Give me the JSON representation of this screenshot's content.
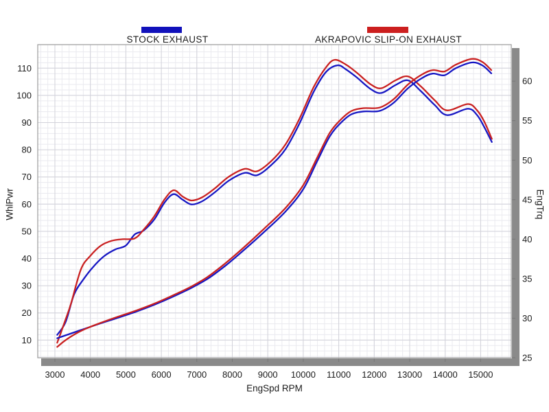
{
  "legend": [
    {
      "label": "STOCK EXHAUST",
      "color": "#1111BB"
    },
    {
      "label": "AKRAPOVIC SLIP-ON EXHAUST",
      "color": "#CC1F1F"
    }
  ],
  "axes": {
    "left_title": "WhlPwr",
    "right_title": "EngTrq",
    "x_title": "EngSpd  RPM"
  },
  "style_colors": {
    "grid_minor": "#eaeaef",
    "grid_major": "#d2d2da",
    "frame": "#9a9a9a",
    "shadow_bar": "#8a8a8a",
    "tick_text": "#1a1a1a",
    "curve_blue": "#1616C3",
    "curve_red": "#C92020"
  },
  "chart_data": {
    "type": "line",
    "title": "",
    "xlabel": "EngSpd  RPM",
    "x_ticks": [
      3000,
      4000,
      5000,
      6000,
      7000,
      8000,
      9000,
      10000,
      11000,
      12000,
      13000,
      14000,
      15000
    ],
    "x_range": [
      2516,
      15862
    ],
    "y_left": {
      "label": "WhlPwr",
      "ticks": [
        10,
        20,
        30,
        40,
        50,
        60,
        70,
        80,
        90,
        100,
        110
      ],
      "range": [
        3.5,
        118.7
      ]
    },
    "y_right": {
      "label": "EngTrq",
      "ticks": [
        25,
        30,
        35,
        40,
        45,
        50,
        55,
        60
      ],
      "range": [
        25,
        64.6
      ]
    },
    "grid": true,
    "legend_position": "top",
    "series": [
      {
        "name": "STOCK EXHAUST - WhlPwr",
        "color": "#1616C3",
        "axis": "left",
        "points": [
          [
            3065,
            10.7
          ],
          [
            3400,
            12.2
          ],
          [
            3800,
            14.0
          ],
          [
            4300,
            16.2
          ],
          [
            4800,
            18.3
          ],
          [
            5300,
            20.5
          ],
          [
            5800,
            23.0
          ],
          [
            6300,
            25.8
          ],
          [
            6800,
            28.9
          ],
          [
            7300,
            32.5
          ],
          [
            7800,
            37.3
          ],
          [
            8300,
            42.8
          ],
          [
            8900,
            49.8
          ],
          [
            9500,
            57.3
          ],
          [
            10000,
            65.5
          ],
          [
            10400,
            76.0
          ],
          [
            10750,
            85.0
          ],
          [
            11050,
            89.8
          ],
          [
            11350,
            93.0
          ],
          [
            11700,
            94.1
          ],
          [
            12150,
            94.3
          ],
          [
            12550,
            97.3
          ],
          [
            12950,
            102.6
          ],
          [
            13350,
            106.4
          ],
          [
            13650,
            108.0
          ],
          [
            13980,
            107.4
          ],
          [
            14300,
            110.0
          ],
          [
            14750,
            112.1
          ],
          [
            15050,
            111.0
          ],
          [
            15300,
            108.1
          ]
        ]
      },
      {
        "name": "AKRAPOVIC SLIP-ON EXHAUST - WhlPwr",
        "color": "#C92020",
        "axis": "left",
        "points": [
          [
            3065,
            7.5
          ],
          [
            3250,
            9.5
          ],
          [
            3500,
            11.7
          ],
          [
            3800,
            13.8
          ],
          [
            4300,
            16.4
          ],
          [
            4800,
            18.7
          ],
          [
            5300,
            20.9
          ],
          [
            5800,
            23.4
          ],
          [
            6300,
            26.3
          ],
          [
            6800,
            29.4
          ],
          [
            7300,
            33.2
          ],
          [
            7800,
            38.2
          ],
          [
            8300,
            43.8
          ],
          [
            8900,
            51.0
          ],
          [
            9500,
            58.6
          ],
          [
            10000,
            67.0
          ],
          [
            10400,
            77.3
          ],
          [
            10750,
            86.3
          ],
          [
            11050,
            91.0
          ],
          [
            11350,
            94.2
          ],
          [
            11700,
            95.3
          ],
          [
            12150,
            95.5
          ],
          [
            12550,
            98.6
          ],
          [
            12950,
            104.0
          ],
          [
            13350,
            107.7
          ],
          [
            13650,
            109.3
          ],
          [
            13980,
            108.8
          ],
          [
            14300,
            111.3
          ],
          [
            14750,
            113.4
          ],
          [
            15050,
            112.3
          ],
          [
            15300,
            109.3
          ]
        ]
      },
      {
        "name": "STOCK EXHAUST - EngTrq",
        "color": "#1616C3",
        "axis": "right",
        "points": [
          [
            3065,
            27.9
          ],
          [
            3300,
            29.5
          ],
          [
            3540,
            33.0
          ],
          [
            3800,
            34.9
          ],
          [
            4100,
            36.6
          ],
          [
            4400,
            37.9
          ],
          [
            4700,
            38.7
          ],
          [
            5000,
            39.2
          ],
          [
            5250,
            40.6
          ],
          [
            5500,
            41.1
          ],
          [
            5800,
            42.5
          ],
          [
            6100,
            44.7
          ],
          [
            6350,
            45.7
          ],
          [
            6600,
            45.0
          ],
          [
            6850,
            44.4
          ],
          [
            7150,
            44.8
          ],
          [
            7500,
            45.9
          ],
          [
            7900,
            47.4
          ],
          [
            8350,
            48.4
          ],
          [
            8700,
            48.1
          ],
          [
            9100,
            49.4
          ],
          [
            9500,
            51.4
          ],
          [
            9900,
            54.7
          ],
          [
            10300,
            58.7
          ],
          [
            10650,
            61.2
          ],
          [
            10970,
            62.0
          ],
          [
            11200,
            61.5
          ],
          [
            11500,
            60.5
          ],
          [
            11900,
            59.0
          ],
          [
            12200,
            58.5
          ],
          [
            12600,
            59.5
          ],
          [
            12950,
            60.1
          ],
          [
            13300,
            58.8
          ],
          [
            13700,
            57.0
          ],
          [
            14050,
            55.7
          ],
          [
            14640,
            56.5
          ],
          [
            14900,
            55.7
          ],
          [
            15100,
            54.2
          ],
          [
            15315,
            52.3
          ]
        ]
      },
      {
        "name": "AKRAPOVIC SLIP-ON EXHAUST - EngTrq",
        "color": "#C92020",
        "axis": "right",
        "points": [
          [
            3065,
            26.9
          ],
          [
            3250,
            29.2
          ],
          [
            3450,
            31.8
          ],
          [
            3735,
            36.2
          ],
          [
            4000,
            37.9
          ],
          [
            4300,
            39.2
          ],
          [
            4600,
            39.8
          ],
          [
            4900,
            40.0
          ],
          [
            5250,
            40.1
          ],
          [
            5500,
            41.2
          ],
          [
            5800,
            42.9
          ],
          [
            6100,
            45.1
          ],
          [
            6350,
            46.2
          ],
          [
            6600,
            45.4
          ],
          [
            6850,
            44.9
          ],
          [
            7150,
            45.3
          ],
          [
            7500,
            46.4
          ],
          [
            7900,
            47.9
          ],
          [
            8350,
            48.9
          ],
          [
            8700,
            48.6
          ],
          [
            9100,
            49.9
          ],
          [
            9500,
            52.0
          ],
          [
            9900,
            55.3
          ],
          [
            10300,
            59.3
          ],
          [
            10650,
            61.8
          ],
          [
            10890,
            62.7
          ],
          [
            11200,
            62.1
          ],
          [
            11500,
            61.1
          ],
          [
            11900,
            59.6
          ],
          [
            12200,
            59.1
          ],
          [
            12600,
            60.1
          ],
          [
            12950,
            60.6
          ],
          [
            13300,
            59.4
          ],
          [
            13700,
            57.6
          ],
          [
            14050,
            56.3
          ],
          [
            14640,
            57.1
          ],
          [
            14900,
            56.3
          ],
          [
            15100,
            54.9
          ],
          [
            15315,
            52.7
          ]
        ]
      }
    ]
  }
}
